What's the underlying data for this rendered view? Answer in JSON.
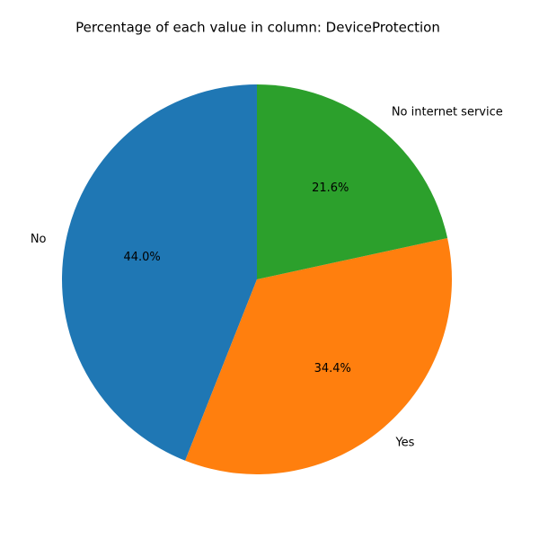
{
  "chart_data": {
    "type": "pie",
    "title": "Percentage of each value in column: DeviceProtection",
    "categories": [
      "No",
      "Yes",
      "No internet service"
    ],
    "values": [
      44.0,
      34.4,
      21.6
    ],
    "value_labels": [
      "44.0%",
      "34.4%",
      "21.6%"
    ],
    "colors": [
      "#1f77b4",
      "#ff7f0e",
      "#2ca02c"
    ],
    "start_angle_deg": 90,
    "direction": "counterclockwise",
    "legend": "none"
  }
}
